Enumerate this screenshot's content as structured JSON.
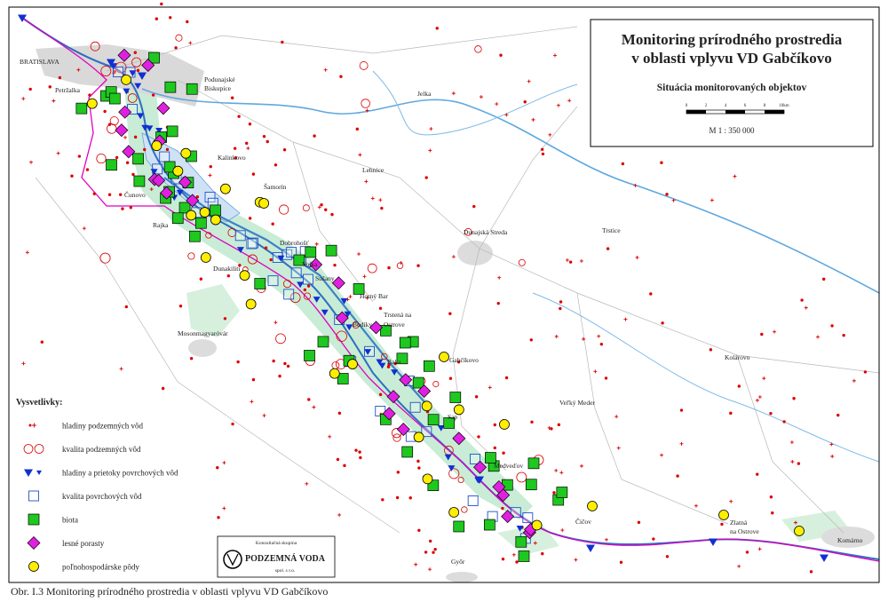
{
  "title": {
    "line1": "Monitoring prírodného prostredia",
    "line2": "v oblasti vplyvu VD Gabčíkovo",
    "subtitle": "Situácia monitorovaných objektov",
    "scale": "M 1 : 350 000",
    "scale_ticks": [
      "0",
      "2",
      "4",
      "6",
      "8",
      "10km"
    ]
  },
  "legend": {
    "title": "Vysvetlivky:",
    "items": [
      "hladiny podzemných vôd",
      "kvalita podzemných vôd",
      "hladiny a prietoky povrchových vôd",
      "kvalita povrchových vôd",
      "biota",
      "lesné porasty",
      "poľnohospodárske pôdy"
    ]
  },
  "logo": {
    "line1": "Konzultačná skupina",
    "line2": "PODZEMNÁ VODA",
    "line3": "spol. s r.o."
  },
  "places": [
    "BRATISLAVA",
    "Petržalka",
    "Podunajské",
    "Biskupice",
    "Jelka",
    "Kalinkovo",
    "Šamorín",
    "Lehnice",
    "Čunovo",
    "Rajka",
    "Dobrohošť",
    "Dunakiliti",
    "Vojka",
    "Sušany",
    "Horný Bar",
    "Trstená na",
    "Ostrove",
    "Dunajská Streda",
    "Trstice",
    "Mosonmagyaróvár",
    "Bodíky",
    "Gabčíkovo",
    "Baka",
    "Kolárovo",
    "Veľký Meder",
    "Sap",
    "Medveďov",
    "Čičov",
    "Zlatná",
    "na Ostrove",
    "Komárno",
    "Győr"
  ],
  "caption": "Obr. I.3  Monitoring prírodného prostredia v oblasti vplyvu VD Gabčíkovo"
}
